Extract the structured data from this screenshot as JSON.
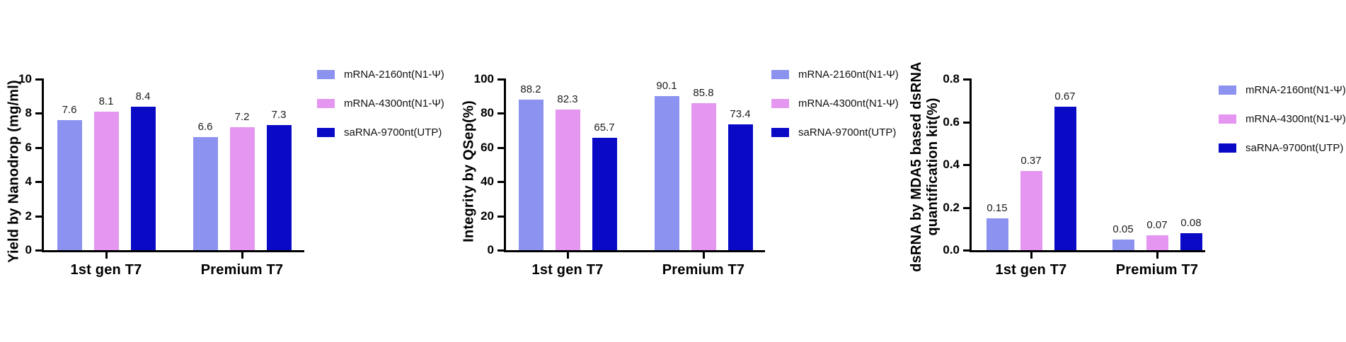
{
  "figure": {
    "background": "#ffffff",
    "panel_count": 3,
    "series_colors": {
      "mRNA-2160nt(N1-Psi)": "#8C92F0",
      "mRNA-4300nt(N1-Psi)": "#E496F0",
      "saRNA-9700nt(UTP)": "#0A0AC6"
    }
  },
  "chart_data": [
    {
      "type": "bar",
      "title": "",
      "ylabel": "Yield by Nanodrop (mg/ml)",
      "xlabel": "",
      "categories": [
        "1st gen T7",
        "Premium T7"
      ],
      "series": [
        {
          "name": "mRNA-2160nt(N1-Ψ)",
          "color": "#8C92F0",
          "values": [
            7.6,
            6.6
          ],
          "labels": [
            "7.6",
            "6.6"
          ]
        },
        {
          "name": "mRNA-4300nt(N1-Ψ)",
          "color": "#E496F0",
          "values": [
            8.1,
            7.2
          ],
          "labels": [
            "8.1",
            "7.2"
          ]
        },
        {
          "name": "saRNA-9700nt(UTP)",
          "color": "#0A0AC6",
          "values": [
            8.4,
            7.3
          ],
          "labels": [
            "8.4",
            "7.3"
          ]
        }
      ],
      "ylim": [
        0,
        10
      ],
      "yticks": [
        "0",
        "2",
        "4",
        "6",
        "8",
        "10"
      ],
      "grid": false,
      "legend_position": "right"
    },
    {
      "type": "bar",
      "title": "",
      "ylabel": "Integrity by QSep(%)",
      "xlabel": "",
      "categories": [
        "1st gen T7",
        "Premium T7"
      ],
      "series": [
        {
          "name": "mRNA-2160nt(N1-Ψ)",
          "color": "#8C92F0",
          "values": [
            88.2,
            90.1
          ],
          "labels": [
            "88.2",
            "90.1"
          ]
        },
        {
          "name": "mRNA-4300nt(N1-Ψ)",
          "color": "#E496F0",
          "values": [
            82.3,
            85.8
          ],
          "labels": [
            "82.3",
            "85.8"
          ]
        },
        {
          "name": "saRNA-9700nt(UTP)",
          "color": "#0A0AC6",
          "values": [
            65.7,
            73.4
          ],
          "labels": [
            "65.7",
            "73.4"
          ]
        }
      ],
      "ylim": [
        0,
        100
      ],
      "yticks": [
        "0",
        "20",
        "40",
        "60",
        "80",
        "100"
      ],
      "grid": false,
      "legend_position": "right"
    },
    {
      "type": "bar",
      "title": "",
      "ylabel": "dsRNA by MDA5 based dsRNA\nquantification kit(%)",
      "xlabel": "",
      "categories": [
        "1st gen T7",
        "Premium T7"
      ],
      "series": [
        {
          "name": "mRNA-2160nt(N1-Ψ)",
          "color": "#8C92F0",
          "values": [
            0.15,
            0.05
          ],
          "labels": [
            "0.15",
            "0.05"
          ]
        },
        {
          "name": "mRNA-4300nt(N1-Ψ)",
          "color": "#E496F0",
          "values": [
            0.37,
            0.07
          ],
          "labels": [
            "0.37",
            "0.07"
          ]
        },
        {
          "name": "saRNA-9700nt(UTP)",
          "color": "#0A0AC6",
          "values": [
            0.67,
            0.08
          ],
          "labels": [
            "0.67",
            "0.08"
          ]
        }
      ],
      "ylim": [
        0,
        0.8
      ],
      "yticks": [
        "0.0",
        "0.2",
        "0.4",
        "0.6",
        "0.8"
      ],
      "grid": false,
      "legend_position": "right"
    }
  ]
}
